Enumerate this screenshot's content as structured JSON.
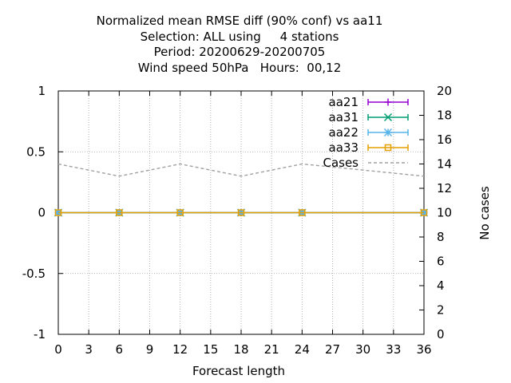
{
  "chart_data": {
    "type": "line",
    "title_lines": [
      "Normalized mean RMSE diff (90% conf) vs aa11",
      "Selection: ALL using     4 stations",
      "Period: 20200629-20200705",
      "Wind speed 50hPa   Hours:  00,12"
    ],
    "xlabel": "Forecast length",
    "ylabel": "",
    "y2label": "No cases",
    "xlim": [
      0,
      36
    ],
    "ylim": [
      -1,
      1
    ],
    "y2lim": [
      0,
      20
    ],
    "x_ticks": [
      "0",
      "3",
      "6",
      "9",
      "12",
      "15",
      "18",
      "21",
      "24",
      "27",
      "30",
      "33",
      "36"
    ],
    "y_ticks": [
      "-1",
      "-0.5",
      "0",
      "0.5",
      "1"
    ],
    "y2_ticks": [
      "0",
      "2",
      "4",
      "6",
      "8",
      "10",
      "12",
      "14",
      "16",
      "18",
      "20"
    ],
    "grid": true,
    "legend_position": "top-right",
    "series": [
      {
        "name": "aa21",
        "axis": "y1",
        "color": "#9400d3",
        "marker": "plus",
        "x": [
          0,
          6,
          12,
          18,
          24,
          36
        ],
        "values": [
          0,
          0,
          0,
          0,
          0,
          0
        ]
      },
      {
        "name": "aa31",
        "axis": "y1",
        "color": "#009e73",
        "marker": "cross",
        "x": [
          0,
          6,
          12,
          18,
          24,
          36
        ],
        "values": [
          0,
          0,
          0,
          0,
          0,
          0
        ]
      },
      {
        "name": "aa22",
        "axis": "y1",
        "color": "#56b4e9",
        "marker": "star",
        "x": [
          0,
          6,
          12,
          18,
          24,
          36
        ],
        "values": [
          0,
          0,
          0,
          0,
          0,
          0
        ]
      },
      {
        "name": "aa33",
        "axis": "y1",
        "color": "#e69f00",
        "marker": "square",
        "x": [
          0,
          6,
          12,
          18,
          24,
          36
        ],
        "values": [
          0,
          0,
          0,
          0,
          0,
          0
        ]
      },
      {
        "name": "Cases",
        "axis": "y2",
        "color": "#a0a0a0",
        "dashed": true,
        "x": [
          0,
          6,
          12,
          18,
          24,
          36
        ],
        "values": [
          14,
          13,
          14,
          13,
          14,
          13
        ]
      }
    ]
  }
}
